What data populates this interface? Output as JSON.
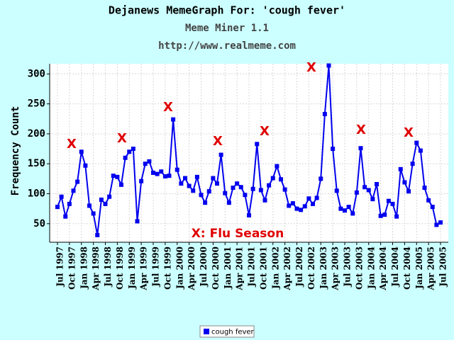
{
  "chart_data": {
    "type": "line",
    "title": "Dejanews MemeGraph For: 'cough fever'",
    "subtitle": "Meme Miner 1.1",
    "url": "http://www.realmeme.com",
    "ylabel": "Frequency Count",
    "categories": [
      "Jul 1997",
      null,
      null,
      "Oct 1997",
      null,
      null,
      "Jan 1998",
      null,
      null,
      "Apr 1998",
      null,
      null,
      "Jul 1998",
      null,
      null,
      "Oct 1998",
      null,
      null,
      "Jan 1999",
      null,
      null,
      "Apr 1999",
      null,
      null,
      "Jul 1999",
      null,
      null,
      "Oct 1999",
      null,
      null,
      "Jan 2000",
      null,
      null,
      "Apr 2000",
      null,
      null,
      "Jul 2000",
      null,
      null,
      "Oct 2000",
      null,
      null,
      "Jan 2001",
      null,
      null,
      "Apr 2001",
      null,
      null,
      "Jul 2001",
      null,
      null,
      "Oct 2001",
      null,
      null,
      "Jan 2002",
      null,
      null,
      "Apr 2002",
      null,
      null,
      "Jul 2002",
      null,
      null,
      "Oct 2002",
      null,
      null,
      "Jan 2003",
      null,
      null,
      "Apr 2003",
      null,
      null,
      "Jul 2003",
      null,
      null,
      "Oct 2003",
      null,
      null,
      "Jan 2004",
      null,
      null,
      "Apr 2004",
      null,
      null,
      "Jul 2004",
      null,
      null,
      "Oct 2004",
      null,
      null,
      "Jan 2005",
      null,
      null,
      "Apr 2005",
      null,
      null,
      "Jul 2005"
    ],
    "series": [
      {
        "name": "cough fever",
        "color": "#0000ee",
        "values": [
          78,
          95,
          62,
          83,
          105,
          120,
          170,
          147,
          80,
          67,
          31,
          90,
          83,
          95,
          130,
          128,
          115,
          160,
          170,
          175,
          54,
          121,
          150,
          154,
          135,
          133,
          137,
          129,
          130,
          224,
          140,
          117,
          126,
          113,
          105,
          128,
          98,
          85,
          104,
          126,
          117,
          165,
          101,
          85,
          110,
          117,
          111,
          98,
          64,
          108,
          183,
          106,
          89,
          114,
          126,
          146,
          124,
          107,
          80,
          84,
          75,
          73,
          79,
          92,
          83,
          93,
          125,
          233,
          314,
          175,
          105,
          75,
          72,
          78,
          67,
          102,
          176,
          111,
          106,
          91,
          116,
          63,
          65,
          88,
          83,
          62,
          141,
          119,
          104,
          150,
          185,
          172,
          110,
          89,
          78,
          48,
          52
        ]
      }
    ],
    "ylim": [
      19,
      317
    ],
    "yticks": [
      50,
      100,
      150,
      200,
      250,
      300
    ],
    "grid": true,
    "legend": "bottom",
    "annotations": [
      "X",
      "X",
      "X",
      "X",
      "X",
      "X",
      "X",
      "X",
      "X:  Flu Season"
    ],
    "annotation_color": "#e00000"
  }
}
